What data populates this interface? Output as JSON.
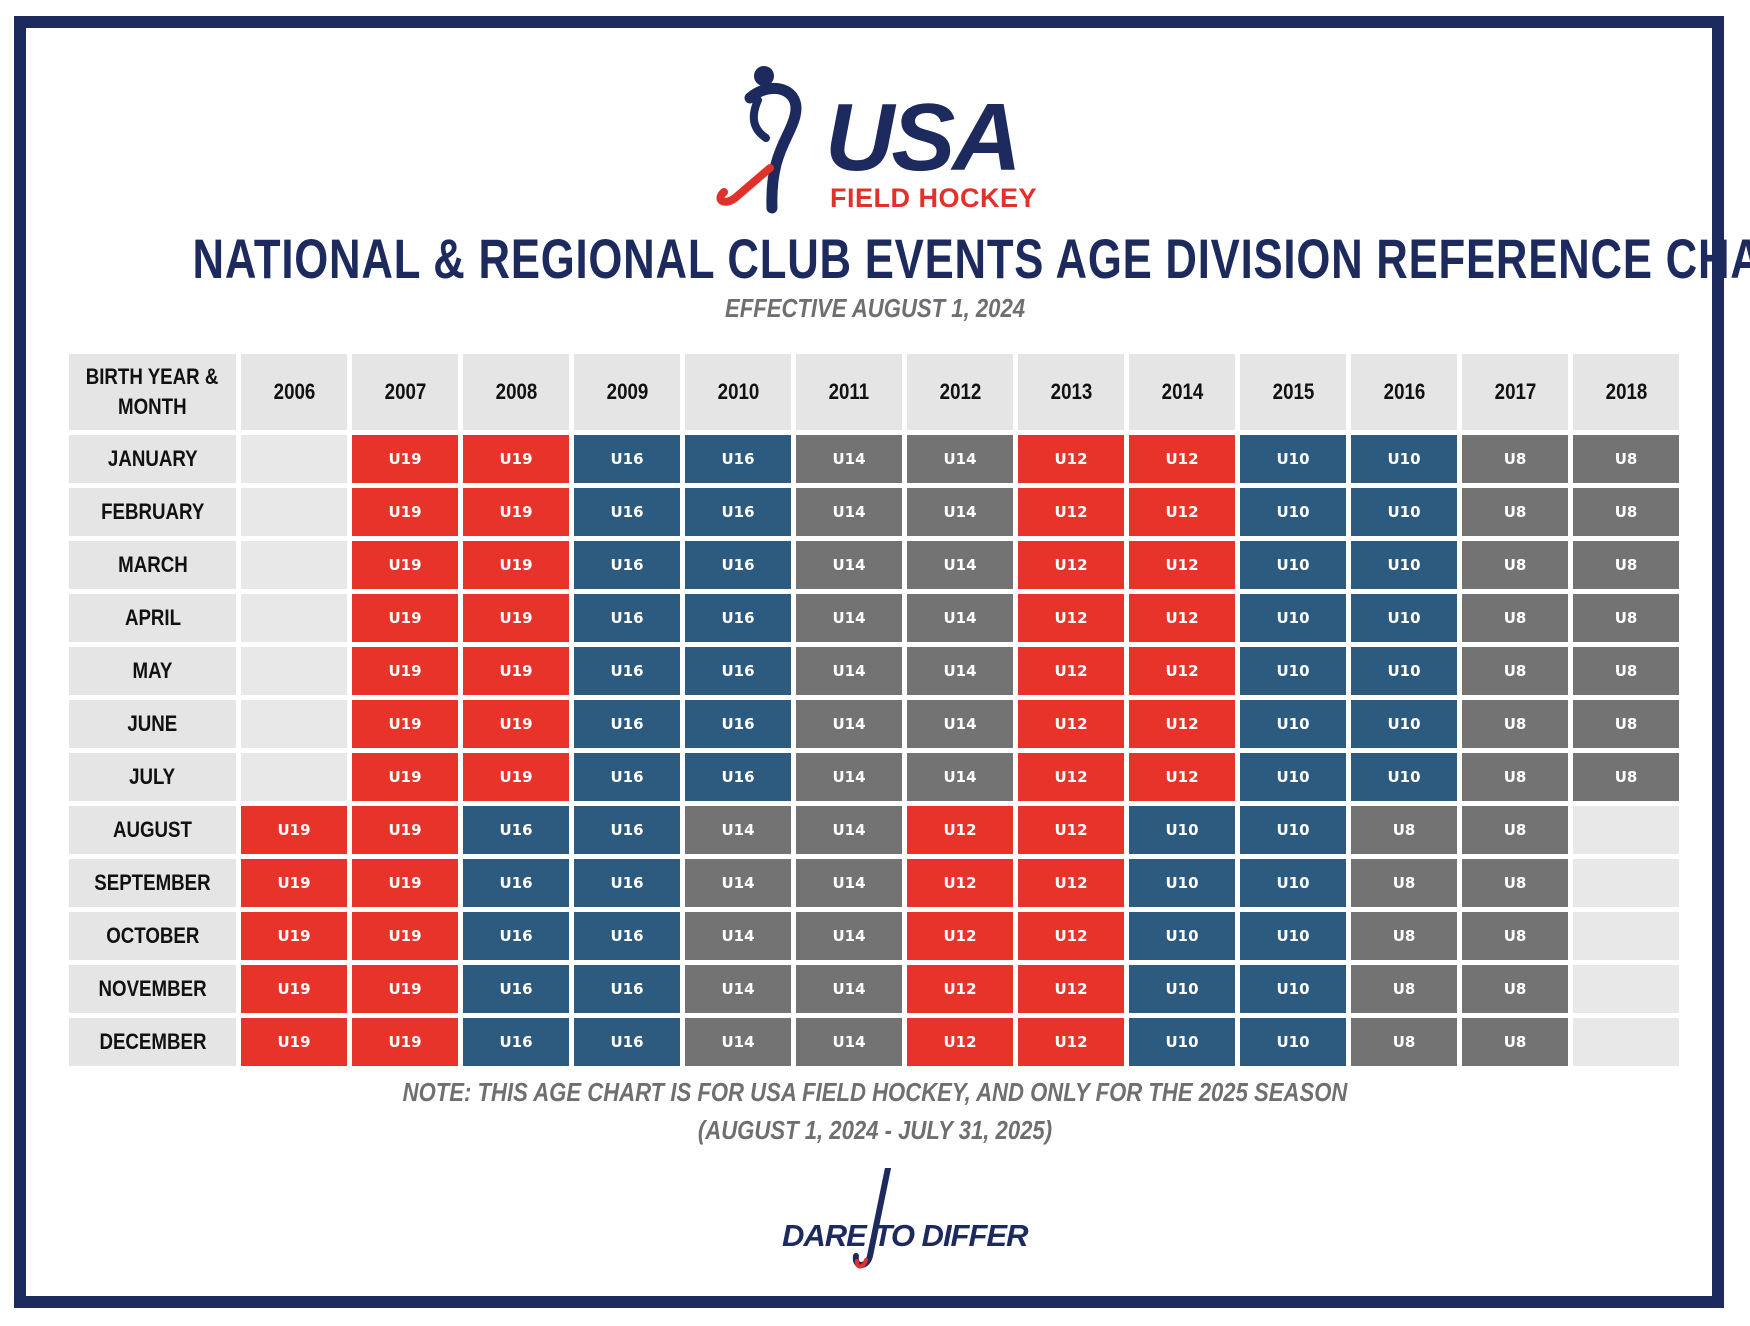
{
  "logo": {
    "main": "USA",
    "sub": "FIELD HOCKEY"
  },
  "title": "NATIONAL & REGIONAL CLUB EVENTS AGE DIVISION REFERENCE CHART",
  "subtitle": "EFFECTIVE AUGUST 1, 2024",
  "colors": {
    "navy": "#1c2a5e",
    "red": "#e8332a",
    "blue": "#2d5a7f",
    "gray": "#737373",
    "empty": "#e8e8e8"
  },
  "table": {
    "corner_line1": "BIRTH YEAR &",
    "corner_line2": "MONTH",
    "years": [
      "2006",
      "2007",
      "2008",
      "2009",
      "2010",
      "2011",
      "2012",
      "2013",
      "2014",
      "2015",
      "2016",
      "2017",
      "2018"
    ],
    "rows": [
      {
        "month": "JANUARY",
        "cells": [
          "",
          "U19",
          "U19",
          "U16",
          "U16",
          "U14",
          "U14",
          "U12",
          "U12",
          "U10",
          "U10",
          "U8",
          "U8"
        ]
      },
      {
        "month": "FEBRUARY",
        "cells": [
          "",
          "U19",
          "U19",
          "U16",
          "U16",
          "U14",
          "U14",
          "U12",
          "U12",
          "U10",
          "U10",
          "U8",
          "U8"
        ]
      },
      {
        "month": "MARCH",
        "cells": [
          "",
          "U19",
          "U19",
          "U16",
          "U16",
          "U14",
          "U14",
          "U12",
          "U12",
          "U10",
          "U10",
          "U8",
          "U8"
        ]
      },
      {
        "month": "APRIL",
        "cells": [
          "",
          "U19",
          "U19",
          "U16",
          "U16",
          "U14",
          "U14",
          "U12",
          "U12",
          "U10",
          "U10",
          "U8",
          "U8"
        ]
      },
      {
        "month": "MAY",
        "cells": [
          "",
          "U19",
          "U19",
          "U16",
          "U16",
          "U14",
          "U14",
          "U12",
          "U12",
          "U10",
          "U10",
          "U8",
          "U8"
        ]
      },
      {
        "month": "JUNE",
        "cells": [
          "",
          "U19",
          "U19",
          "U16",
          "U16",
          "U14",
          "U14",
          "U12",
          "U12",
          "U10",
          "U10",
          "U8",
          "U8"
        ]
      },
      {
        "month": "JULY",
        "cells": [
          "",
          "U19",
          "U19",
          "U16",
          "U16",
          "U14",
          "U14",
          "U12",
          "U12",
          "U10",
          "U10",
          "U8",
          "U8"
        ]
      },
      {
        "month": "AUGUST",
        "cells": [
          "U19",
          "U19",
          "U16",
          "U16",
          "U14",
          "U14",
          "U12",
          "U12",
          "U10",
          "U10",
          "U8",
          "U8",
          ""
        ]
      },
      {
        "month": "SEPTEMBER",
        "cells": [
          "U19",
          "U19",
          "U16",
          "U16",
          "U14",
          "U14",
          "U12",
          "U12",
          "U10",
          "U10",
          "U8",
          "U8",
          ""
        ]
      },
      {
        "month": "OCTOBER",
        "cells": [
          "U19",
          "U19",
          "U16",
          "U16",
          "U14",
          "U14",
          "U12",
          "U12",
          "U10",
          "U10",
          "U8",
          "U8",
          ""
        ]
      },
      {
        "month": "NOVEMBER",
        "cells": [
          "U19",
          "U19",
          "U16",
          "U16",
          "U14",
          "U14",
          "U12",
          "U12",
          "U10",
          "U10",
          "U8",
          "U8",
          ""
        ]
      },
      {
        "month": "DECEMBER",
        "cells": [
          "U19",
          "U19",
          "U16",
          "U16",
          "U14",
          "U14",
          "U12",
          "U12",
          "U10",
          "U10",
          "U8",
          "U8",
          ""
        ]
      }
    ]
  },
  "note_line1": "NOTE: THIS AGE CHART IS FOR USA FIELD HOCKEY, AND ONLY FOR THE 2025 SEASON",
  "note_line2": "(AUGUST 1, 2024 - JULY 31, 2025)",
  "footer_logo": "DARE TO DIFFER"
}
